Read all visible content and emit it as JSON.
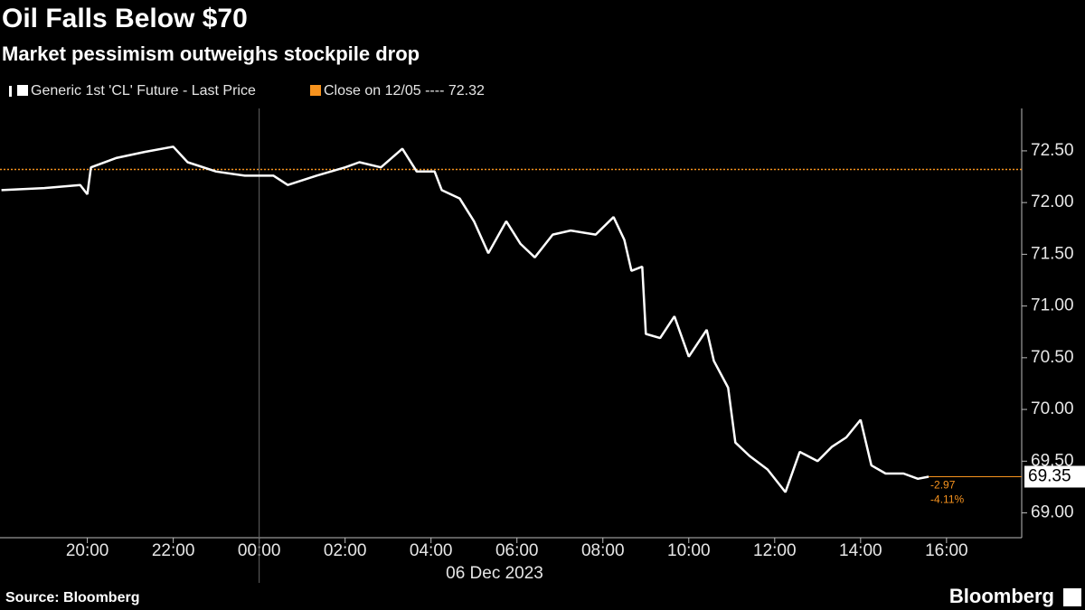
{
  "chart_data": {
    "type": "line",
    "title": "Oil Falls Below $70",
    "subtitle": "Market pessimism outweighs stockpile drop",
    "xlabel": "06 Dec 2023",
    "x": [
      "18:00",
      "19:00",
      "19:50",
      "20:00",
      "20:05",
      "20:40",
      "21:20",
      "22:00",
      "22:20",
      "23:00",
      "23:40",
      "00:20",
      "00:40",
      "01:20",
      "02:00",
      "02:20",
      "02:50",
      "03:20",
      "03:40",
      "04:05",
      "04:15",
      "04:40",
      "05:00",
      "05:20",
      "05:45",
      "06:05",
      "06:25",
      "06:50",
      "07:15",
      "07:50",
      "08:15",
      "08:30",
      "08:40",
      "08:55",
      "09:00",
      "09:20",
      "09:40",
      "10:00",
      "10:25",
      "10:35",
      "10:55",
      "11:05",
      "11:25",
      "11:50",
      "12:15",
      "12:35",
      "13:00",
      "13:20",
      "13:40",
      "14:00",
      "14:15",
      "14:35",
      "15:00",
      "15:20",
      "15:35"
    ],
    "series": [
      {
        "name": "Generic 1st 'CL' Future - Last Price",
        "color": "#ffffff",
        "values": [
          72.12,
          72.14,
          72.17,
          72.08,
          72.34,
          72.43,
          72.49,
          72.54,
          72.39,
          72.3,
          72.26,
          72.26,
          72.17,
          72.26,
          72.34,
          72.39,
          72.34,
          72.52,
          72.3,
          72.3,
          72.12,
          72.04,
          71.82,
          71.51,
          71.82,
          71.6,
          71.47,
          71.69,
          71.73,
          71.69,
          71.86,
          71.64,
          71.34,
          71.38,
          70.73,
          70.69,
          70.9,
          70.51,
          70.77,
          70.47,
          70.21,
          69.68,
          69.55,
          69.42,
          69.2,
          69.59,
          69.5,
          69.64,
          69.73,
          69.9,
          69.46,
          69.38,
          69.38,
          69.33,
          69.35
        ]
      }
    ],
    "reference_line": {
      "name": "Close on 12/05 ---- 72.32",
      "value": 72.32,
      "color": "#f7931e"
    },
    "annotations": [
      "-2.97",
      "-4.11%"
    ],
    "xlim": [
      "17:58",
      "17:45"
    ],
    "xticks": [
      "20:00",
      "22:00",
      "00:00",
      "02:00",
      "04:00",
      "06:00",
      "08:00",
      "10:00",
      "12:00",
      "14:00",
      "16:00"
    ],
    "ylim": [
      68.76,
      72.91
    ],
    "yticks": [
      {
        "value": 69,
        "label": "69.00"
      },
      {
        "value": 69.5,
        "label": "69.50"
      },
      {
        "value": 70,
        "label": "70.00"
      },
      {
        "value": 70.5,
        "label": "70.50"
      },
      {
        "value": 71,
        "label": "71.00"
      },
      {
        "value": 71.5,
        "label": "71.50"
      },
      {
        "value": 72,
        "label": "72.00"
      },
      {
        "value": 72.5,
        "label": "72.50"
      }
    ]
  },
  "source": "Source: Bloomberg",
  "brand": "Bloomberg"
}
